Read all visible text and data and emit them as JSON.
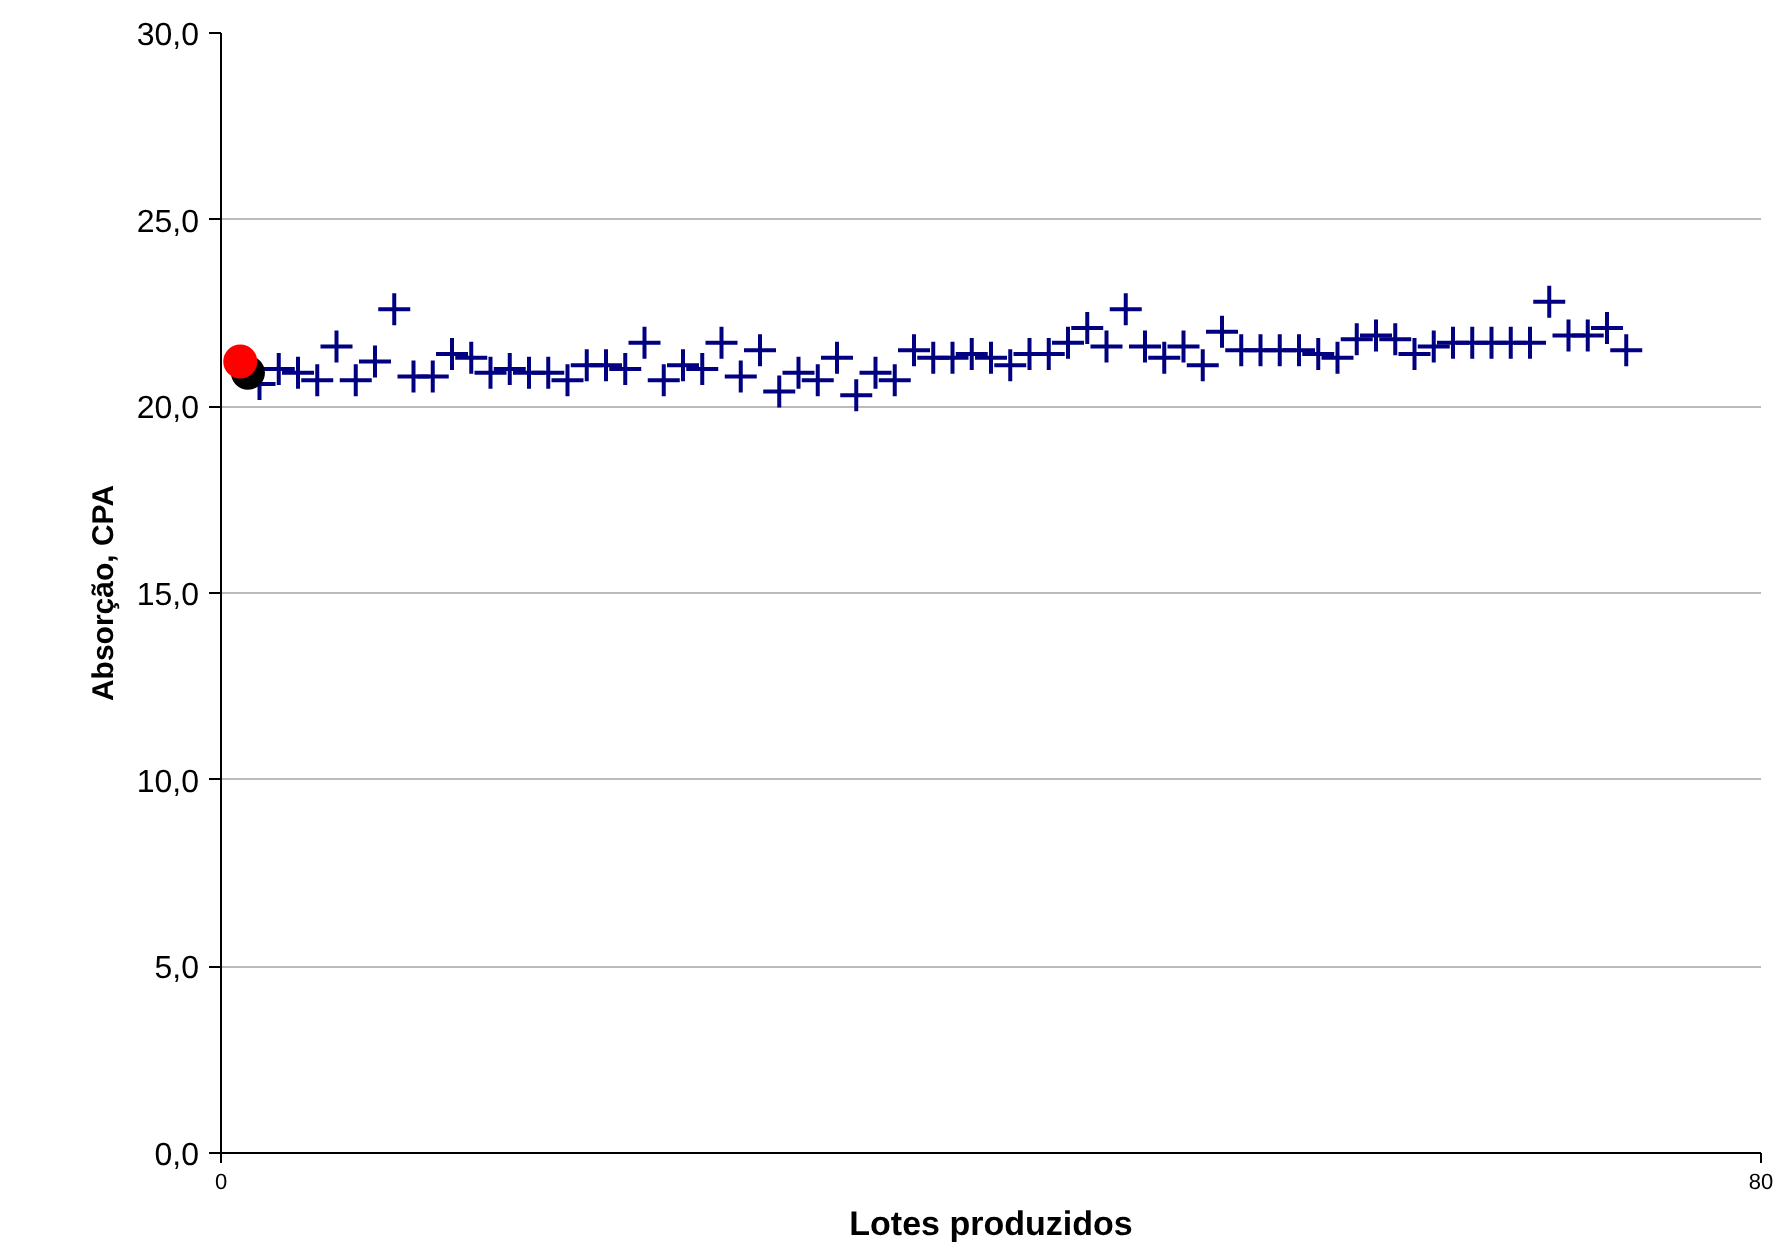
{
  "chart_data": {
    "type": "scatter",
    "xlabel": "Lotes produzidos",
    "ylabel": "Absorção, CPA",
    "xlim": [
      0,
      80
    ],
    "xticks": [
      0,
      80
    ],
    "ylim": [
      0,
      30
    ],
    "yticks": [
      {
        "value": 0,
        "label": "0,0"
      },
      {
        "value": 5,
        "label": "5,0"
      },
      {
        "value": 10,
        "label": "10,0"
      },
      {
        "value": 15,
        "label": "15,0"
      },
      {
        "value": 20,
        "label": "20,0"
      },
      {
        "value": 25,
        "label": "25,0"
      },
      {
        "value": 30,
        "label": "30,0"
      }
    ],
    "grid": "y",
    "series": [
      {
        "color": "#000080",
        "marker": "cross",
        "x": [
          2,
          3,
          4,
          5,
          6,
          7,
          8,
          9,
          10,
          11,
          12,
          13,
          14,
          15,
          16,
          17,
          18,
          19,
          20,
          21,
          22,
          23,
          24,
          25,
          26,
          27,
          28,
          29,
          30,
          31,
          32,
          33,
          34,
          35,
          36,
          37,
          38,
          39,
          40,
          41,
          42,
          43,
          44,
          45,
          46,
          47,
          48,
          49,
          50,
          51,
          52,
          53,
          54,
          55,
          56,
          57,
          58,
          59,
          60,
          61,
          62,
          63,
          64,
          65,
          66,
          67,
          68,
          69,
          70,
          71,
          72,
          73
        ],
        "values": [
          20.6,
          21.0,
          20.9,
          20.7,
          21.6,
          20.7,
          21.2,
          22.6,
          20.8,
          20.8,
          21.4,
          21.3,
          20.9,
          21.0,
          20.9,
          20.9,
          20.7,
          21.1,
          21.1,
          21.0,
          21.7,
          20.7,
          21.1,
          21.0,
          21.7,
          20.8,
          21.5,
          20.4,
          20.9,
          20.7,
          21.3,
          20.3,
          20.9,
          20.7,
          21.5,
          21.3,
          21.3,
          21.4,
          21.3,
          21.1,
          21.4,
          21.4,
          21.7,
          22.1,
          21.6,
          22.6,
          21.6,
          21.3,
          21.6,
          21.1,
          22.0,
          21.5,
          21.5,
          21.5,
          21.5,
          21.4,
          21.3,
          21.8,
          21.9,
          21.8,
          21.4,
          21.6,
          21.7,
          21.7,
          21.7,
          21.7,
          21.7,
          22.8,
          21.9,
          21.9,
          22.1,
          21.5
        ]
      },
      {
        "color": "#000000",
        "marker": "circle",
        "x": [
          1.4
        ],
        "values": [
          20.9
        ]
      },
      {
        "color": "#ff0000",
        "marker": "circle",
        "x": [
          1
        ],
        "values": [
          21.2
        ]
      }
    ]
  }
}
